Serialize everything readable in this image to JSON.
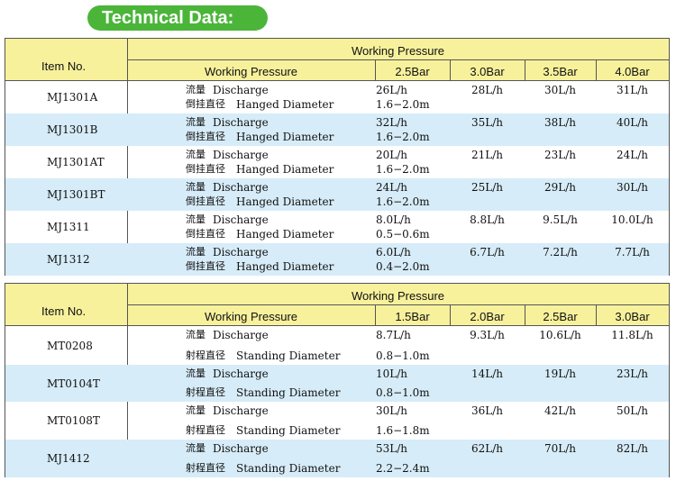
{
  "title": "Technical Data:",
  "table1": {
    "item_header": "Item No.",
    "group_header": "Working Pressure",
    "sub_header": "Working Pressure",
    "pressures": [
      "2.5Bar",
      "3.0Bar",
      "3.5Bar",
      "4.0Bar"
    ],
    "rows": [
      {
        "item": "MJ1301A",
        "l1_zh": "流量",
        "l1_en": "Discharge",
        "l2_zh": "倒挂直径",
        "l2_en": "Hanged Diameter",
        "v1": "26L/h",
        "v2": "28L/h",
        "v3": "30L/h",
        "v4": "31L/h",
        "d": "1.6−2.0m"
      },
      {
        "item": "MJ1301B",
        "l1_zh": "流量",
        "l1_en": "Discharge",
        "l2_zh": "倒挂直径",
        "l2_en": "Hanged Diameter",
        "v1": "32L/h",
        "v2": "35L/h",
        "v3": "38L/h",
        "v4": "40L/h",
        "d": "1.6−2.0m"
      },
      {
        "item": "MJ1301AT",
        "l1_zh": "流量",
        "l1_en": "Discharge",
        "l2_zh": "倒挂直径",
        "l2_en": "Hanged Diameter",
        "v1": "20L/h",
        "v2": "21L/h",
        "v3": "23L/h",
        "v4": "24L/h",
        "d": "1.6−2.0m"
      },
      {
        "item": "MJ1301BT",
        "l1_zh": "流量",
        "l1_en": "Discharge",
        "l2_zh": "倒挂直径",
        "l2_en": "Hanged Diameter",
        "v1": "24L/h",
        "v2": "25L/h",
        "v3": "29L/h",
        "v4": "30L/h",
        "d": "1.6−2.0m"
      },
      {
        "item": "MJ1311",
        "l1_zh": "流量",
        "l1_en": "Discharge",
        "l2_zh": "倒挂直径",
        "l2_en": "Hanged Diameter",
        "v1": "8.0L/h",
        "v2": "8.8L/h",
        "v3": "9.5L/h",
        "v4": "10.0L/h",
        "d": "0.5−0.6m"
      },
      {
        "item": "MJ1312",
        "l1_zh": "流量",
        "l1_en": "Discharge",
        "l2_zh": "倒挂直径",
        "l2_en": "Hanged Diameter",
        "v1": "6.0L/h",
        "v2": "6.7L/h",
        "v3": "7.2L/h",
        "v4": "7.7L/h",
        "d": "0.4−2.0m"
      }
    ]
  },
  "table2": {
    "item_header": "Item No.",
    "group_header": "Working Pressure",
    "sub_header": "Working Pressure",
    "pressures": [
      "1.5Bar",
      "2.0Bar",
      "2.5Bar",
      "3.0Bar"
    ],
    "rows": [
      {
        "item": "MT0208",
        "l1_zh": "流量",
        "l1_en": "Discharge",
        "l2_zh": "射程直径",
        "l2_en": "Standing Diameter",
        "v1": "8.7L/h",
        "v2": "9.3L/h",
        "v3": "10.6L/h",
        "v4": "11.8L/h",
        "d": "0.8−1.0m"
      },
      {
        "item": "MT0104T",
        "l1_zh": "流量",
        "l1_en": "Discharge",
        "l2_zh": "射程直径",
        "l2_en": "Standing Diameter",
        "v1": "10L/h",
        "v2": "14L/h",
        "v3": "19L/h",
        "v4": "23L/h",
        "d": "0.8−1.0m"
      },
      {
        "item": "MT0108T",
        "l1_zh": "流量",
        "l1_en": "Discharge",
        "l2_zh": "射程直径",
        "l2_en": "Standing Diameter",
        "v1": "30L/h",
        "v2": "36L/h",
        "v3": "42L/h",
        "v4": "50L/h",
        "d": "1.6−1.8m"
      },
      {
        "item": "MJ1412",
        "l1_zh": "流量",
        "l1_en": "Discharge",
        "l2_zh": "射程直径",
        "l2_en": "Standing Diameter",
        "v1": "53L/h",
        "v2": "62L/h",
        "v3": "70L/h",
        "v4": "82L/h",
        "d": "2.2−2.4m"
      }
    ]
  }
}
